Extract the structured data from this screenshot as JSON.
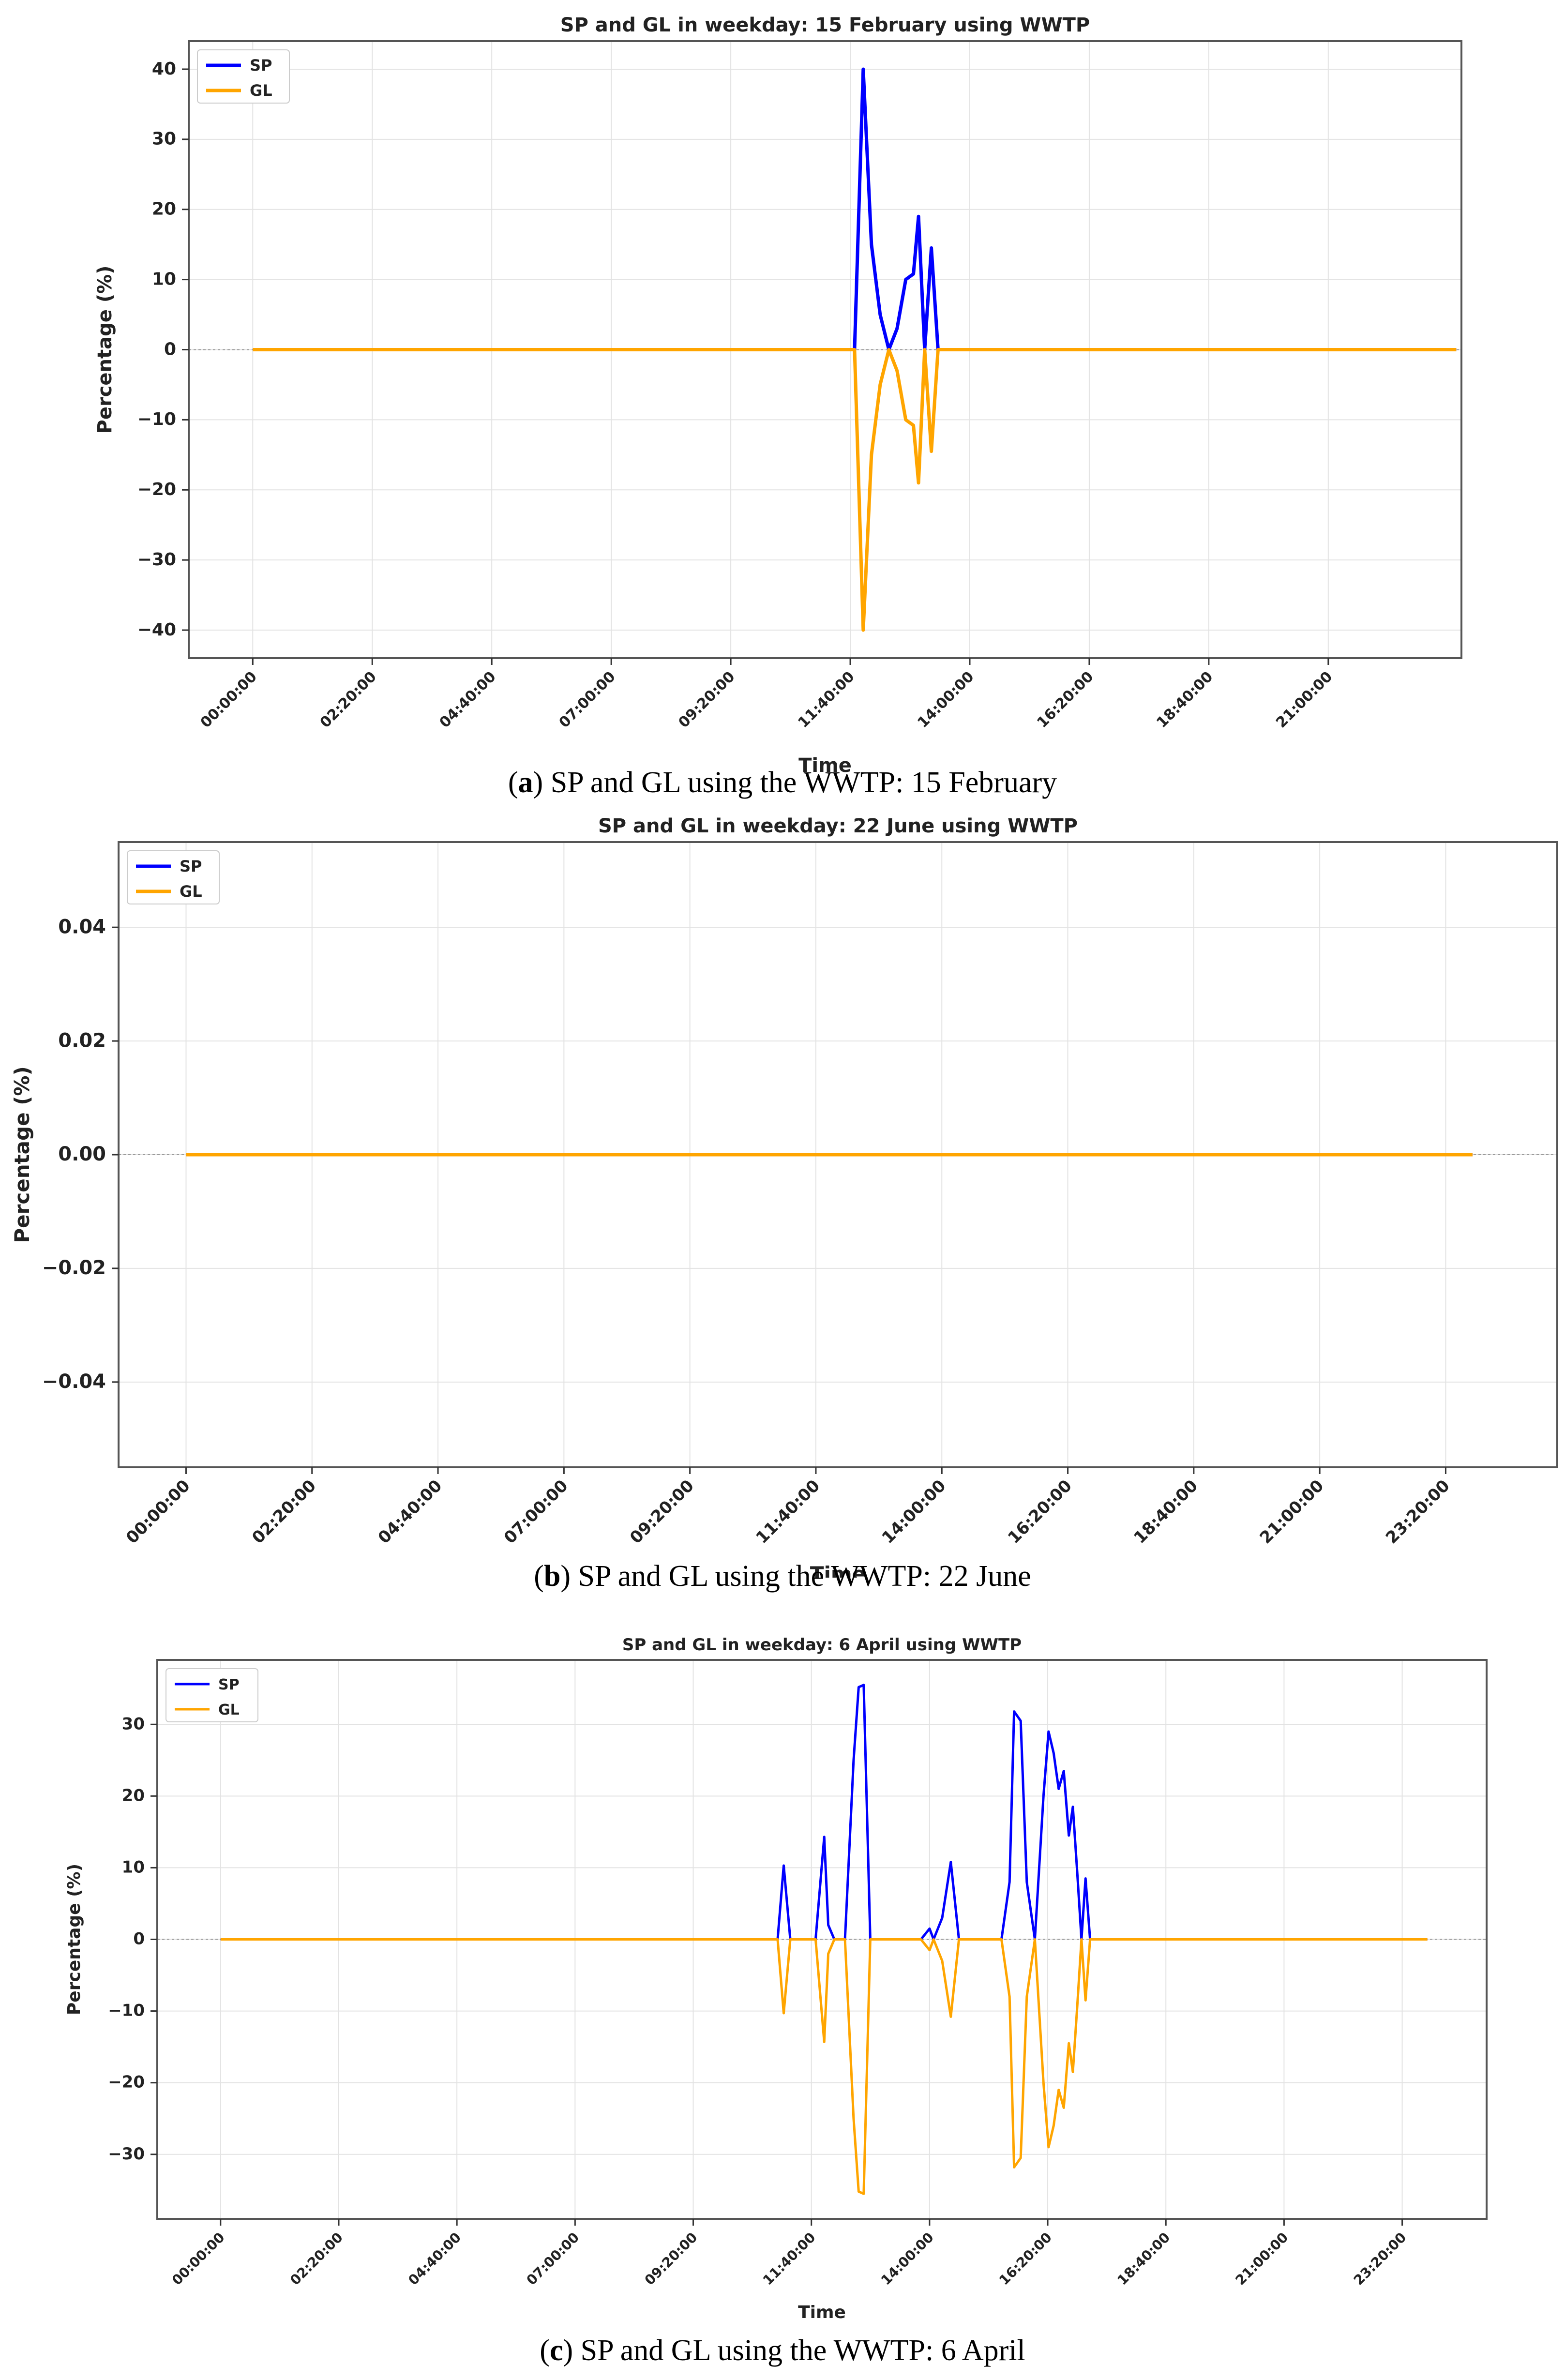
{
  "chart_data": [
    {
      "type": "line",
      "title": "SP and GL in weekday: 15 February using WWTP",
      "xlabel": "Time",
      "ylabel": "Percentage (%)",
      "xticks": [
        "00:00:00",
        "02:20:00",
        "04:40:00",
        "07:00:00",
        "09:20:00",
        "11:40:00",
        "14:00:00",
        "16:20:00",
        "18:40:00",
        "21:00:00"
      ],
      "xlim_hours": [
        -1.25,
        23.6
      ],
      "yticks": [
        "40",
        "30",
        "20",
        "10",
        "0",
        "−10",
        "−20",
        "−30",
        "−40"
      ],
      "ytick_values": [
        40,
        30,
        20,
        10,
        0,
        -10,
        -20,
        -30,
        -40
      ],
      "ylim": [
        -44,
        44
      ],
      "legend": "top-left",
      "grid": true,
      "x_range_hours": [
        0,
        23.5
      ],
      "series": [
        {
          "name": "SP",
          "color": "#0000ff",
          "points": [
            [
              11.75,
              0
            ],
            [
              11.92,
              40
            ],
            [
              12.08,
              15
            ],
            [
              12.25,
              5
            ],
            [
              12.42,
              0
            ],
            [
              12.58,
              3
            ],
            [
              12.75,
              10
            ],
            [
              12.9,
              10.8
            ],
            [
              13.0,
              19
            ],
            [
              13.12,
              0
            ],
            [
              13.25,
              14.5
            ],
            [
              13.38,
              0
            ]
          ]
        },
        {
          "name": "GL",
          "color": "#ffa500",
          "points": [
            [
              11.75,
              0
            ],
            [
              11.92,
              -40
            ],
            [
              12.08,
              -15
            ],
            [
              12.25,
              -5
            ],
            [
              12.42,
              0
            ],
            [
              12.58,
              -3
            ],
            [
              12.75,
              -10
            ],
            [
              12.9,
              -10.8
            ],
            [
              13.0,
              -19
            ],
            [
              13.12,
              0
            ],
            [
              13.25,
              -14.5
            ],
            [
              13.38,
              0
            ]
          ]
        }
      ],
      "caption_letter": "a",
      "caption_text": "SP and GL using the WWTP: 15 February"
    },
    {
      "type": "line",
      "title": "SP and GL in weekday: 22 June using WWTP",
      "xlabel": "Time",
      "ylabel": "Percentage (%)",
      "xticks": [
        "00:00:00",
        "02:20:00",
        "04:40:00",
        "07:00:00",
        "09:20:00",
        "11:40:00",
        "14:00:00",
        "16:20:00",
        "18:40:00",
        "21:00:00",
        "23:20:00"
      ],
      "xlim_hours": [
        -1.25,
        25.4
      ],
      "yticks": [
        "0.04",
        "0.02",
        "0.00",
        "−0.02",
        "−0.04"
      ],
      "ytick_values": [
        0.04,
        0.02,
        0,
        -0.02,
        -0.04
      ],
      "ylim": [
        -0.055,
        0.055
      ],
      "legend": "top-left",
      "grid": true,
      "x_range_hours": [
        0,
        23.83
      ],
      "series": [
        {
          "name": "SP",
          "color": "#0000ff",
          "points": []
        },
        {
          "name": "GL",
          "color": "#ffa500",
          "points": []
        }
      ],
      "caption_letter": "b",
      "caption_text": "SP and GL using the WWTP: 22 June"
    },
    {
      "type": "line",
      "title": "SP and GL in weekday: 6 April using WWTP",
      "xlabel": "Time",
      "ylabel": "Percentage (%)",
      "xticks": [
        "00:00:00",
        "02:20:00",
        "04:40:00",
        "07:00:00",
        "09:20:00",
        "11:40:00",
        "14:00:00",
        "16:20:00",
        "18:40:00",
        "21:00:00",
        "23:20:00"
      ],
      "xlim_hours": [
        -1.25,
        25.0
      ],
      "yticks": [
        "30",
        "20",
        "10",
        "0",
        "−10",
        "−20",
        "−30"
      ],
      "ytick_values": [
        30,
        20,
        10,
        0,
        -10,
        -20,
        -30
      ],
      "ylim": [
        -39,
        39
      ],
      "legend": "top-left",
      "grid": true,
      "x_range_hours": [
        0,
        23.83
      ],
      "series": [
        {
          "name": "SP",
          "color": "#0000ff",
          "points": [
            [
              11.0,
              0
            ],
            [
              11.12,
              10.3
            ],
            [
              11.25,
              0
            ],
            [
              11.75,
              0
            ],
            [
              11.92,
              14.3
            ],
            [
              12.0,
              2
            ],
            [
              12.12,
              0
            ],
            [
              12.33,
              0
            ],
            [
              12.5,
              25
            ],
            [
              12.6,
              35.2
            ],
            [
              12.7,
              35.5
            ],
            [
              12.83,
              0
            ],
            [
              13.83,
              0
            ],
            [
              14.0,
              1.5
            ],
            [
              14.08,
              0
            ],
            [
              14.25,
              3
            ],
            [
              14.42,
              10.8
            ],
            [
              14.58,
              0
            ],
            [
              15.42,
              0
            ],
            [
              15.58,
              8
            ],
            [
              15.67,
              31.8
            ],
            [
              15.8,
              30.5
            ],
            [
              15.92,
              8
            ],
            [
              16.08,
              0
            ],
            [
              16.25,
              20
            ],
            [
              16.35,
              29
            ],
            [
              16.45,
              26
            ],
            [
              16.55,
              21
            ],
            [
              16.65,
              23.5
            ],
            [
              16.75,
              14.5
            ],
            [
              16.83,
              18.5
            ],
            [
              16.92,
              9
            ],
            [
              17.0,
              0
            ],
            [
              17.08,
              8.5
            ],
            [
              17.17,
              0
            ]
          ]
        },
        {
          "name": "GL",
          "color": "#ffa500",
          "points": [
            [
              11.0,
              0
            ],
            [
              11.12,
              -10.3
            ],
            [
              11.25,
              0
            ],
            [
              11.75,
              0
            ],
            [
              11.92,
              -14.3
            ],
            [
              12.0,
              -2
            ],
            [
              12.12,
              0
            ],
            [
              12.33,
              0
            ],
            [
              12.5,
              -25
            ],
            [
              12.6,
              -35.2
            ],
            [
              12.7,
              -35.5
            ],
            [
              12.83,
              0
            ],
            [
              13.83,
              0
            ],
            [
              14.0,
              -1.5
            ],
            [
              14.08,
              0
            ],
            [
              14.25,
              -3
            ],
            [
              14.42,
              -10.8
            ],
            [
              14.58,
              0
            ],
            [
              15.42,
              0
            ],
            [
              15.58,
              -8
            ],
            [
              15.67,
              -31.8
            ],
            [
              15.8,
              -30.5
            ],
            [
              15.92,
              -8
            ],
            [
              16.08,
              0
            ],
            [
              16.25,
              -20
            ],
            [
              16.35,
              -29
            ],
            [
              16.45,
              -26
            ],
            [
              16.55,
              -21
            ],
            [
              16.65,
              -23.5
            ],
            [
              16.75,
              -14.5
            ],
            [
              16.83,
              -18.5
            ],
            [
              16.92,
              -9
            ],
            [
              17.0,
              0
            ],
            [
              17.08,
              -8.5
            ],
            [
              17.17,
              0
            ]
          ]
        }
      ],
      "caption_letter": "c",
      "caption_text": "SP and GL using the WWTP: 6 April"
    }
  ]
}
